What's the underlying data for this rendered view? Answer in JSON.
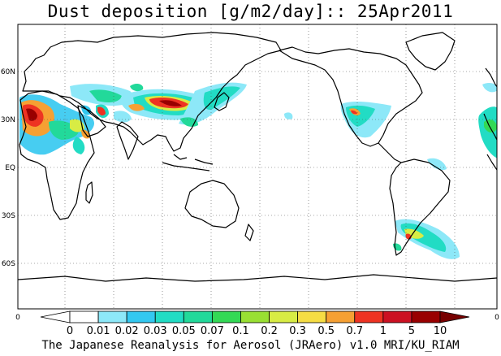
{
  "title": "Dust deposition [g/m2/day]:: 25Apr2011",
  "footer": "The Japanese Reanalysis for Aerosol (JRAero) v1.0 MRI/KU_RIAM",
  "map": {
    "projection": "equirectangular",
    "lon_range": [
      20,
      380
    ],
    "lat_range": [
      -90,
      90
    ],
    "grid": true,
    "lat_labels": [
      {
        "lat": 60,
        "text": "60N"
      },
      {
        "lat": 30,
        "text": "30N"
      },
      {
        "lat": 0,
        "text": "EQ"
      },
      {
        "lat": -30,
        "text": "30S"
      },
      {
        "lat": -60,
        "text": "60S"
      }
    ],
    "corner_label_left": "0",
    "corner_label_right": "0"
  },
  "colorbar": {
    "labels": [
      "0",
      "0.01",
      "0.02",
      "0.03",
      "0.05",
      "0.07",
      "0.1",
      "0.2",
      "0.3",
      "0.5",
      "0.7",
      "1",
      "5",
      "10"
    ],
    "colors": [
      "#ffffff",
      "#ffffff",
      "#8de8f8",
      "#33c8f0",
      "#22dcc4",
      "#22d99a",
      "#33d955",
      "#99e033",
      "#d8ec44",
      "#f6dd44",
      "#f6a033",
      "#ee3322",
      "#cc1122",
      "#990000",
      "#770000"
    ]
  }
}
